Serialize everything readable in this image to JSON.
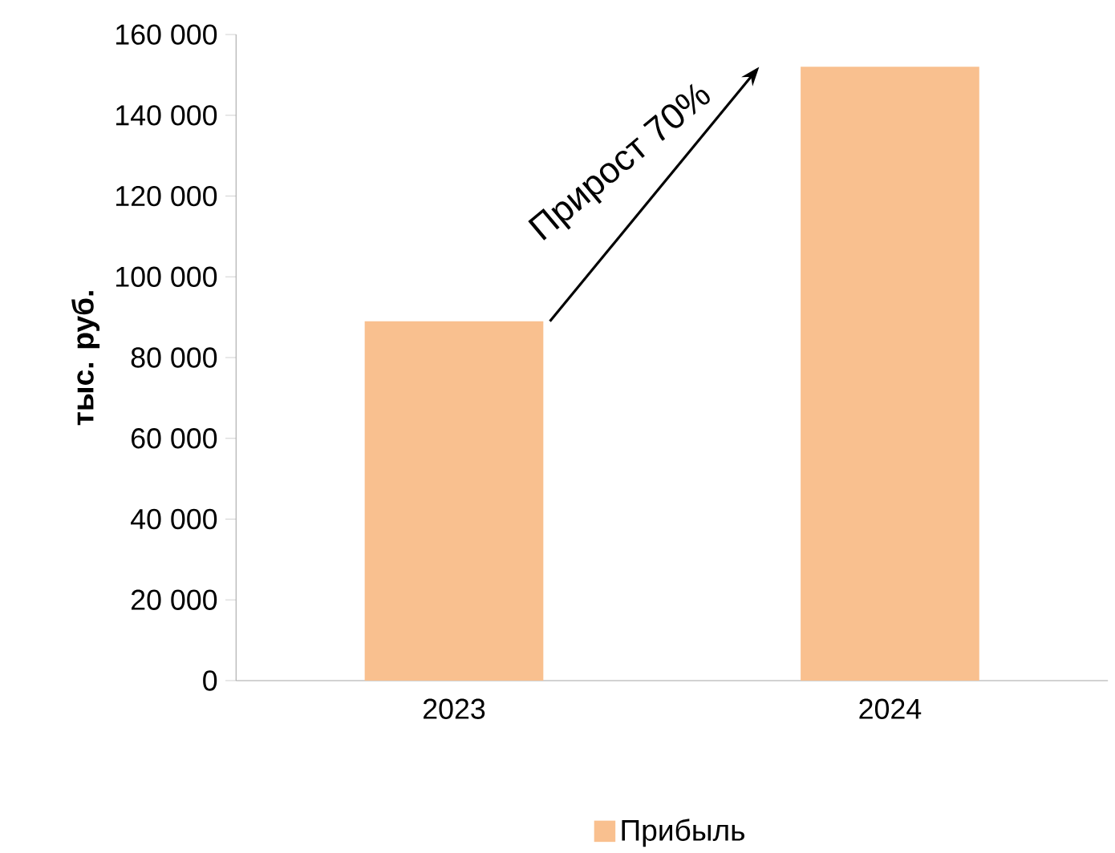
{
  "chart_data": {
    "type": "bar",
    "ylabel": "тыс. руб.",
    "categories": [
      "2023",
      "2024"
    ],
    "series": [
      {
        "name": "Прибыль",
        "color": "#f9c08f",
        "values": [
          89000,
          152000
        ]
      }
    ],
    "ylim": [
      0,
      160000
    ],
    "yticks": [
      0,
      {
        "value": 20000,
        "label": "20 000"
      },
      {
        "value": 40000,
        "label": "40 000"
      },
      {
        "value": 60000,
        "label": "60 000"
      },
      {
        "value": 80000,
        "label": "80 000"
      },
      {
        "value": 100000,
        "label": "100 000"
      },
      {
        "value": 120000,
        "label": "120 000"
      },
      {
        "value": 140000,
        "label": "140 000"
      },
      {
        "value": 160000,
        "label": "160 000"
      }
    ],
    "annotations": [
      "Прирост 70%"
    ],
    "legend": "bottom",
    "grid": false
  }
}
